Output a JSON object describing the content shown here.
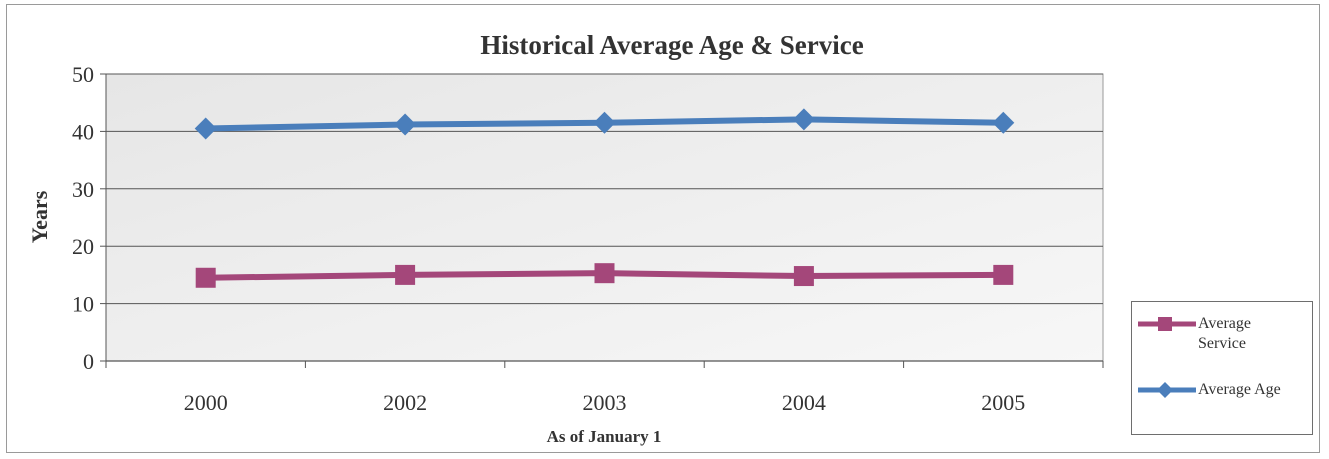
{
  "chart_data": {
    "type": "line",
    "title": "Historical Average Age & Service",
    "xlabel": "As of January 1",
    "ylabel": "Years",
    "categories": [
      "2000",
      "2002",
      "2003",
      "2004",
      "2005"
    ],
    "ylim": [
      0,
      50
    ],
    "yticks": [
      "0",
      "10",
      "20",
      "30",
      "40",
      "50"
    ],
    "grid": true,
    "legend_position": "right",
    "series": [
      {
        "name": "Average Age",
        "values": [
          40.5,
          41.2,
          41.5,
          42.1,
          41.5
        ],
        "color": "#4a7ebb",
        "marker": "diamond"
      },
      {
        "name": "Average Service",
        "values": [
          14.5,
          15.0,
          15.3,
          14.8,
          15.0
        ],
        "color": "#a4477a",
        "marker": "square"
      }
    ],
    "legend": [
      {
        "series": "Average Service",
        "label_lines": [
          "Average",
          "Service"
        ]
      },
      {
        "series": "Average Age",
        "label_lines": [
          "Average Age"
        ]
      }
    ],
    "plot_background": "#efefef"
  }
}
